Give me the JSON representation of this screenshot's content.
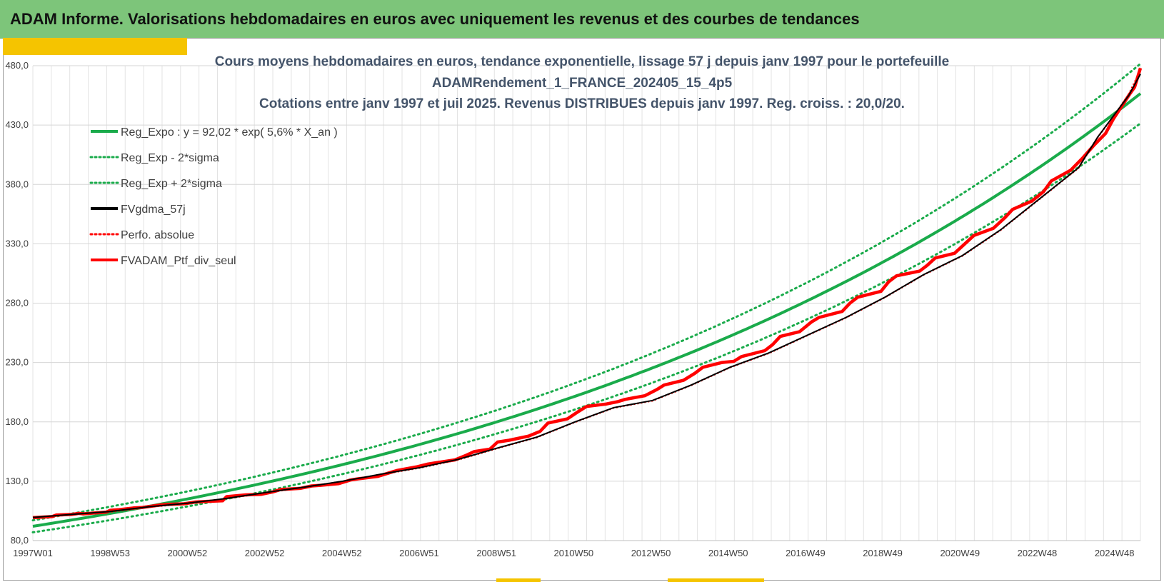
{
  "header": {
    "title": "ADAM Informe. Valorisations hebdomadaires en euros avec uniquement les revenus et des courbes de tendances"
  },
  "chart_data": {
    "type": "line",
    "title_lines": [
      "Cours moyens hebdomadaires  en euros, tendance exponentielle, lissage 57 j depuis janv 1997 pour le portefeuille",
      "ADAMRendement_1_FRANCE_202405_15_4p5",
      "Cotations  entre janv 1997 et juil 2025. Revenus DISTRIBUES depuis janv 1997. Reg. croiss. : 20,0/20."
    ],
    "x_tick_labels": [
      "1997W01",
      "1998W53",
      "2000W52",
      "2002W52",
      "2004W52",
      "2006W51",
      "2008W51",
      "2010W50",
      "2012W50",
      "2014W50",
      "2016W49",
      "2018W49",
      "2020W49",
      "2022W48",
      "2024W48"
    ],
    "y_tick_labels": [
      "80,0",
      "130,0",
      "180,0",
      "230,0",
      "280,0",
      "330,0",
      "380,0",
      "430,0",
      "480,0"
    ],
    "ylim": [
      80,
      480
    ],
    "xlim": [
      1997.0,
      2025.6
    ],
    "grid": true,
    "legend_position": "top-left",
    "regression": {
      "a": 92.02,
      "rate": 0.056
    },
    "sigma_factor": 0.055,
    "legend": [
      {
        "label": "Reg_Expo : y = 92,02 * exp( 5,6% *  X_an )",
        "color": "#1aab4b",
        "style": "solid"
      },
      {
        "label": "Reg_Exp - 2*sigma",
        "color": "#1aab4b",
        "style": "dotted"
      },
      {
        "label": "Reg_Exp + 2*sigma",
        "color": "#1aab4b",
        "style": "dotted"
      },
      {
        "label": "FVgdma_57j",
        "color": "#000000",
        "style": "solid"
      },
      {
        "label": "Perfo. absolue",
        "color": "#ff0000",
        "style": "dotted"
      },
      {
        "label": "FVADAM_Ptf_div_seul",
        "color": "#ff0000",
        "style": "solid"
      }
    ],
    "series": [
      {
        "name": "FVADAM_Ptf_div_seul",
        "x": [
          1997.0,
          1997.5,
          1997.6,
          1998.0,
          1998.2,
          1998.3,
          1998.9,
          1999.0,
          1999.2,
          1999.6,
          1999.8,
          2000.3,
          2000.5,
          2000.9,
          2001.2,
          2001.5,
          2001.9,
          2002.0,
          2002.5,
          2002.9,
          2003.2,
          2003.4,
          2003.9,
          2004.2,
          2004.4,
          2004.9,
          2005.2,
          2005.4,
          2005.9,
          2006.2,
          2006.4,
          2006.9,
          2007.2,
          2007.4,
          2007.9,
          2008.2,
          2008.4,
          2008.6,
          2008.8,
          2009.0,
          2009.3,
          2009.8,
          2010.1,
          2010.3,
          2010.8,
          2011.1,
          2011.3,
          2011.8,
          2012.1,
          2012.3,
          2012.8,
          2013.1,
          2013.3,
          2013.8,
          2014.1,
          2014.3,
          2014.8,
          2015.1,
          2015.3,
          2015.9,
          2016.1,
          2016.3,
          2016.8,
          2017.1,
          2017.3,
          2017.9,
          2018.1,
          2018.3,
          2018.9,
          2019.1,
          2019.3,
          2019.9,
          2020.1,
          2020.3,
          2020.8,
          2021.1,
          2021.3,
          2021.8,
          2022.1,
          2022.3,
          2022.8,
          2023.1,
          2023.3,
          2023.8,
          2024.1,
          2024.4,
          2024.7,
          2024.9,
          2025.1,
          2025.3,
          2025.45,
          2025.6
        ],
        "y": [
          99.3,
          100.2,
          101.5,
          102.0,
          103.0,
          102.5,
          104.0,
          105.5,
          106.0,
          107.5,
          107.8,
          110.0,
          110.5,
          111.0,
          112.5,
          113.0,
          113.5,
          117.0,
          118.5,
          119.0,
          121.0,
          123.0,
          124.0,
          126.0,
          126.5,
          128.0,
          131.0,
          132.0,
          134.0,
          137.0,
          139.0,
          142.0,
          144.5,
          145.5,
          148.0,
          152.0,
          155.0,
          156.0,
          157.0,
          163.0,
          164.5,
          168.0,
          172.0,
          179.0,
          182.5,
          189.0,
          193.0,
          195.0,
          197.0,
          199.0,
          202.0,
          207.0,
          211.0,
          215.0,
          221.0,
          226.0,
          230.0,
          231.0,
          235.0,
          240.0,
          245.0,
          252.0,
          256.0,
          264.0,
          268.0,
          273.0,
          280.0,
          285.0,
          290.0,
          298.0,
          303.0,
          307.0,
          312.0,
          318.0,
          322.0,
          331.0,
          337.0,
          343.0,
          352.0,
          359.0,
          366.0,
          374.0,
          383.0,
          392.0,
          402.0,
          413.0,
          423.0,
          435.0,
          445.0,
          455.0,
          462.0,
          478.0
        ]
      },
      {
        "name": "FVgdma_57j",
        "x": [
          1997.0,
          1998.0,
          1999.0,
          2000.0,
          2001.0,
          2002.0,
          2003.0,
          2004.0,
          2005.0,
          2006.0,
          2007.0,
          2008.0,
          2009.0,
          2010.0,
          2011.0,
          2012.0,
          2013.0,
          2014.0,
          2015.0,
          2016.0,
          2017.0,
          2018.0,
          2019.0,
          2020.0,
          2021.0,
          2022.0,
          2023.0,
          2024.0,
          2024.5,
          2025.0,
          2025.3,
          2025.6
        ],
        "y": [
          99.5,
          102.0,
          104.5,
          108.5,
          111.5,
          115.5,
          120.5,
          125.0,
          130.0,
          136.0,
          141.5,
          148.5,
          158.0,
          167.0,
          180.0,
          192.0,
          198.0,
          211.0,
          226.0,
          238.0,
          253.0,
          268.0,
          285.0,
          304.0,
          320.0,
          342.0,
          368.0,
          394.0,
          420.0,
          442.0,
          455.0,
          473.0
        ]
      },
      {
        "name": "Perfo. absolue",
        "x": [
          1997.0,
          1998.0,
          1999.0,
          2000.0,
          2001.0,
          2002.0,
          2003.0,
          2004.0,
          2005.0,
          2006.0,
          2007.0,
          2008.0,
          2009.0,
          2010.0,
          2011.0,
          2012.0,
          2013.0,
          2014.0,
          2015.0,
          2016.0,
          2017.0,
          2018.0,
          2019.0,
          2020.0,
          2021.0,
          2022.0,
          2023.0,
          2024.0,
          2024.5,
          2025.0,
          2025.3,
          2025.6
        ],
        "y": [
          99.3,
          101.8,
          104.2,
          108.3,
          111.3,
          115.3,
          120.3,
          124.8,
          129.8,
          135.8,
          141.3,
          148.3,
          157.8,
          166.8,
          179.8,
          191.8,
          197.8,
          210.8,
          225.8,
          237.8,
          252.8,
          267.8,
          284.8,
          303.8,
          319.8,
          341.8,
          367.8,
          393.8,
          419.8,
          441.8,
          456.0,
          476.0
        ]
      }
    ]
  }
}
